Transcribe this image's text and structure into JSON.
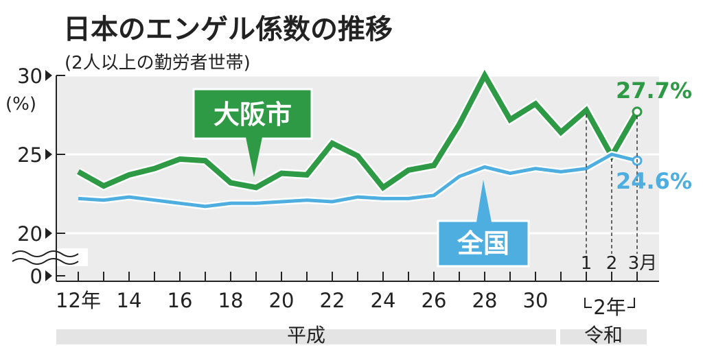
{
  "header": {
    "title": "日本のエンゲル係数の推移",
    "subtitle": "(2人以上の勤労者世帯)"
  },
  "chart_data": {
    "type": "line",
    "title": "日本のエンゲル係数の推移",
    "subtitle": "(2人以上の勤労者世帯)",
    "ylabel": "(%)",
    "ylim": [
      20,
      30
    ],
    "y_ticks": [
      "30",
      "25",
      "20",
      "0"
    ],
    "y_axis_break": true,
    "x_tick_labels": [
      "12年",
      "14",
      "16",
      "18",
      "20",
      "22",
      "24",
      "26",
      "28",
      "30",
      "1",
      "2",
      "3月"
    ],
    "reiwa_year_label": "2年",
    "eras": [
      "平成",
      "令和"
    ],
    "x": [
      "平成12",
      "平成13",
      "平成14",
      "平成15",
      "平成16",
      "平成17",
      "平成18",
      "平成19",
      "平成20",
      "平成21",
      "平成22",
      "平成23",
      "平成24",
      "平成25",
      "平成26",
      "平成27",
      "平成28",
      "平成29",
      "平成30",
      "平成31/令和1",
      "令和2年1月",
      "令和2年2月",
      "令和2年3月"
    ],
    "series": [
      {
        "name": "大阪市",
        "color": "#2e9a46",
        "values": [
          23.9,
          23.0,
          23.7,
          24.1,
          24.7,
          24.6,
          23.2,
          22.9,
          23.8,
          23.7,
          25.7,
          24.9,
          22.9,
          24.0,
          24.3,
          26.9,
          30.0,
          27.2,
          28.2,
          26.4,
          27.8,
          24.9,
          27.7
        ],
        "end_label": "27.7%"
      },
      {
        "name": "全国",
        "color": "#4faee0",
        "values": [
          22.2,
          22.1,
          22.3,
          22.1,
          21.9,
          21.7,
          21.9,
          21.9,
          22.0,
          22.1,
          22.0,
          22.3,
          22.2,
          22.2,
          22.4,
          23.6,
          24.2,
          23.8,
          24.1,
          23.9,
          24.1,
          25.0,
          24.6
        ],
        "end_label": "24.6%"
      }
    ],
    "grid": true,
    "legend": "inline labels"
  }
}
